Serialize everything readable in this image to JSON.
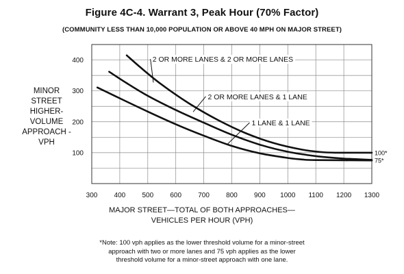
{
  "chart_data": {
    "type": "line",
    "title": "Figure 4C-4.  Warrant 3, Peak Hour (70% Factor)",
    "subtitle": "(COMMUNITY LESS THAN 10,000 POPULATION OR ABOVE 40 MPH ON MAJOR STREET)",
    "ylabel_lines": [
      "MINOR",
      "STREET",
      "HIGHER-",
      "VOLUME",
      "APPROACH -",
      "VPH"
    ],
    "xlabel_lines": [
      "MAJOR STREET—TOTAL OF BOTH APPROACHES—",
      "VEHICLES PER HOUR (VPH)"
    ],
    "xlim": [
      300,
      1300
    ],
    "ylim": [
      0,
      450
    ],
    "x_ticks": [
      300,
      400,
      500,
      600,
      700,
      800,
      900,
      1000,
      1100,
      1200,
      1300
    ],
    "y_ticks": [
      100,
      200,
      300,
      400
    ],
    "grid": true,
    "series": [
      {
        "name": "2 OR MORE LANES & 2 OR MORE LANES",
        "points": [
          [
            425,
            415
          ],
          [
            475,
            375
          ],
          [
            550,
            320
          ],
          [
            650,
            258
          ],
          [
            750,
            206
          ],
          [
            850,
            163
          ],
          [
            950,
            131
          ],
          [
            1050,
            110
          ],
          [
            1120,
            102
          ],
          [
            1170,
            100
          ],
          [
            1300,
            100
          ]
        ],
        "end_label": "100*"
      },
      {
        "name": "2 OR MORE LANES & 1 LANE",
        "points": [
          [
            362,
            362
          ],
          [
            425,
            325
          ],
          [
            500,
            284
          ],
          [
            600,
            238
          ],
          [
            700,
            197
          ],
          [
            800,
            158
          ],
          [
            900,
            126
          ],
          [
            1000,
            103
          ],
          [
            1100,
            89
          ],
          [
            1200,
            81
          ],
          [
            1300,
            77
          ]
        ]
      },
      {
        "name": "1 LANE & 1 LANE",
        "points": [
          [
            320,
            311
          ],
          [
            400,
            276
          ],
          [
            500,
            233
          ],
          [
            600,
            192
          ],
          [
            700,
            155
          ],
          [
            800,
            122
          ],
          [
            900,
            98
          ],
          [
            1000,
            83
          ],
          [
            1050,
            78
          ],
          [
            1100,
            76
          ],
          [
            1300,
            75
          ]
        ],
        "end_label": "75*"
      }
    ],
    "annotations": [
      {
        "text": "2 OR MORE LANES & 2 OR MORE LANES",
        "x": 768,
        "y": 403,
        "leader_to": [
          520,
          327
        ]
      },
      {
        "text": "2 OR MORE LANES & 1 LANE",
        "x": 892,
        "y": 282,
        "leader_to": [
          662,
          232
        ]
      },
      {
        "text": "1 LANE & 1 LANE",
        "x": 975,
        "y": 197,
        "leader_to": [
          785,
          128
        ]
      }
    ],
    "note_lines": [
      "*Note: 100 vph applies as the lower threshold volume for a minor-street",
      "approach with two or more lanes and 75 vph applies as the lower",
      "threshold volume for a minor-street approach with one lane."
    ]
  }
}
